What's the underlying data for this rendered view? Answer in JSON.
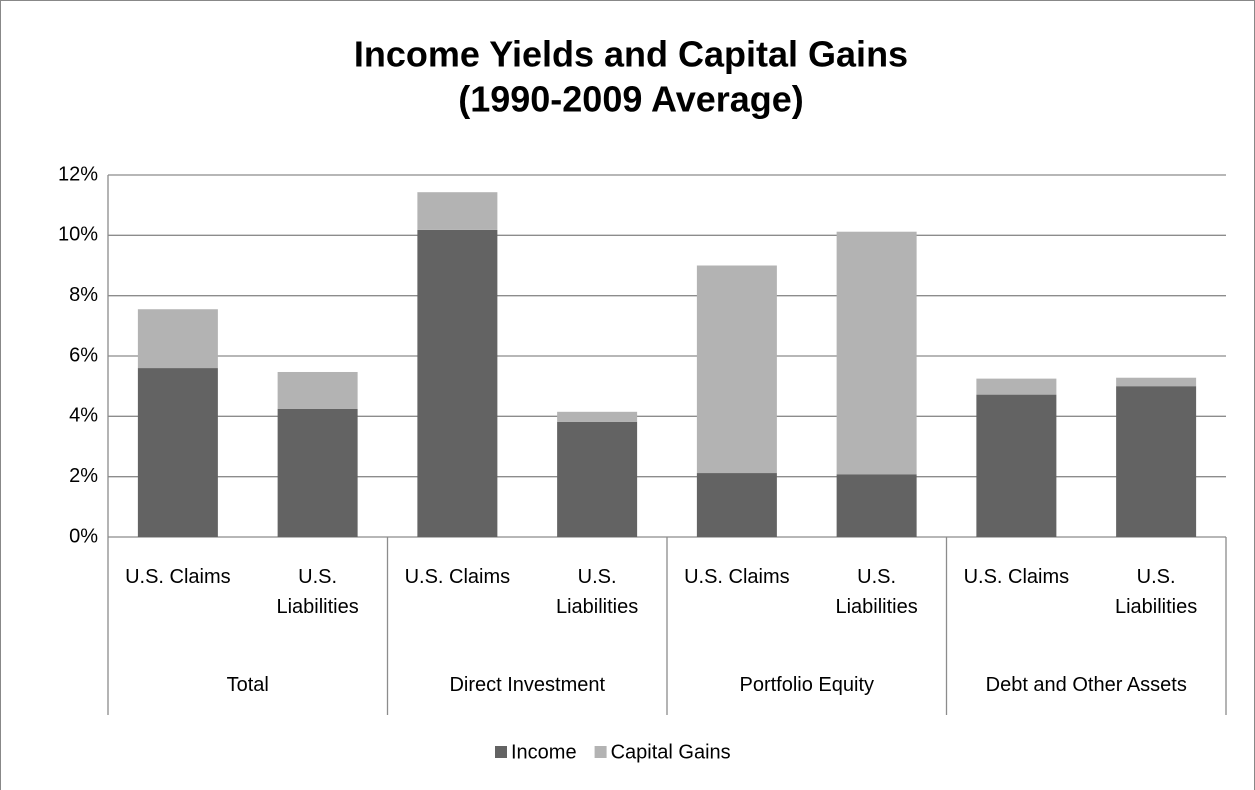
{
  "chart_data": {
    "type": "stacked_bar",
    "title": "Income Yields and Capital Gains",
    "subtitle": "(1990-2009 Average)",
    "categories": [
      "U.S. Claims",
      "U.S. Liabilities",
      "U.S. Claims",
      "U.S. Liabilities",
      "U.S. Claims",
      "U.S. Liabilities",
      "U.S. Claims",
      "U.S. Liabilities"
    ],
    "groups": [
      "Total",
      "Direct Investment",
      "Portfolio Equity",
      "Debt and Other Assets"
    ],
    "series": [
      {
        "name": "Income",
        "color": "#636363",
        "values": [
          5.6,
          4.25,
          10.18,
          3.82,
          2.12,
          2.08,
          4.72,
          5.0
        ]
      },
      {
        "name": "Capital Gains",
        "color": "#b3b3b3",
        "values": [
          1.95,
          1.22,
          1.25,
          0.33,
          6.88,
          8.04,
          0.53,
          0.28
        ]
      }
    ],
    "ylim": [
      0,
      12
    ],
    "yticks": [
      {
        "value": 0,
        "label": "0%"
      },
      {
        "value": 2,
        "label": "2%"
      },
      {
        "value": 4,
        "label": "4%"
      },
      {
        "value": 6,
        "label": "6%"
      },
      {
        "value": 8,
        "label": "8%"
      },
      {
        "value": 10,
        "label": "10%"
      },
      {
        "value": 12,
        "label": "12%"
      }
    ],
    "grid": true,
    "legend": "bottom"
  }
}
